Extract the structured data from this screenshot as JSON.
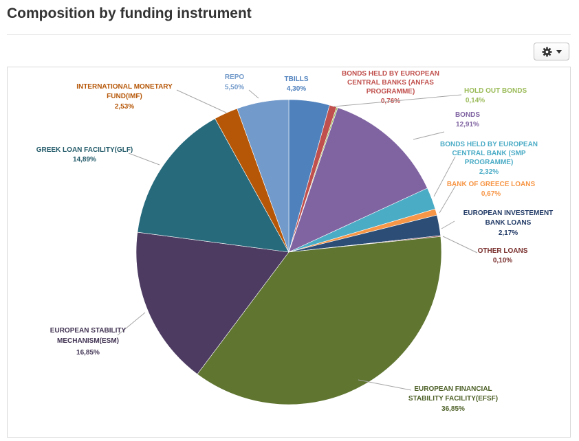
{
  "title": "Composition by funding instrument",
  "settings_button": {
    "icon": "gear-icon",
    "dropdown_icon": "caret-down-icon"
  },
  "chart_data": {
    "type": "pie",
    "title": "Composition by funding instrument",
    "unit": "%",
    "decimal_separator": ",",
    "slices": [
      {
        "label": "TBILLS",
        "value": 4.3,
        "display": "4,30%",
        "color": "#4F81BD"
      },
      {
        "label": "BONDS HELD BY EUROPEAN CENTRAL BANKS (ANFAS PROGRAMME)",
        "value": 0.76,
        "display": "0,76%",
        "color": "#C0504D"
      },
      {
        "label": "HOLD OUT BONDS",
        "value": 0.14,
        "display": "0,14%",
        "color": "#9BBB59"
      },
      {
        "label": "BONDS",
        "value": 12.91,
        "display": "12,91%",
        "color": "#8064A2"
      },
      {
        "label": "BONDS HELD BY EUROPEAN CENTRAL BANK (SMP PROGRAMME)",
        "value": 2.32,
        "display": "2,32%",
        "color": "#4BACC6"
      },
      {
        "label": "BANK OF GREECE LOANS",
        "value": 0.67,
        "display": "0,67%",
        "color": "#F79646"
      },
      {
        "label": "EUROPEAN INVESTEMENT BANK LOANS",
        "value": 2.17,
        "display": "2,17%",
        "color": "#2C4D75"
      },
      {
        "label": "OTHER LOANS",
        "value": 0.1,
        "display": "0,10%",
        "color": "#772C2A"
      },
      {
        "label": "EUROPEAN FINANCIAL STABILITY FACILITY(EFSF)",
        "value": 36.85,
        "display": "36,85%",
        "color": "#5F7530"
      },
      {
        "label": "EUROPEAN STABILITY MECHANISM(ESM)",
        "value": 16.85,
        "display": "16,85%",
        "color": "#4D3B62"
      },
      {
        "label": "GREEK LOAN FACILITY(GLF)",
        "value": 14.89,
        "display": "14,89%",
        "color": "#276A7C"
      },
      {
        "label": "INTERNATIONAL MONETARY FUND(IMF)",
        "value": 2.53,
        "display": "2,53%",
        "color": "#B65708"
      },
      {
        "label": "REPO",
        "value": 5.5,
        "display": "5,50%",
        "color": "#729ACA"
      }
    ],
    "label_colors": {
      "TBILLS": "#4F81BD",
      "BONDS HELD BY EUROPEAN CENTRAL BANKS (ANFAS PROGRAMME)": "#C0504D",
      "HOLD OUT BONDS": "#9BBB59",
      "BONDS": "#8064A2",
      "BONDS HELD BY EUROPEAN CENTRAL BANK (SMP PROGRAMME)": "#4BACC6",
      "BANK OF GREECE LOANS": "#F79646",
      "EUROPEAN INVESTEMENT BANK LOANS": "#1F3864",
      "OTHER LOANS": "#772C2A",
      "EUROPEAN FINANCIAL STABILITY FACILITY(EFSF)": "#4E6128",
      "EUROPEAN STABILITY MECHANISM(ESM)": "#3F3151",
      "GREEK LOAN FACILITY(GLF)": "#215968",
      "INTERNATIONAL MONETARY FUND(IMF)": "#B65708",
      "REPO": "#729ACA"
    }
  }
}
